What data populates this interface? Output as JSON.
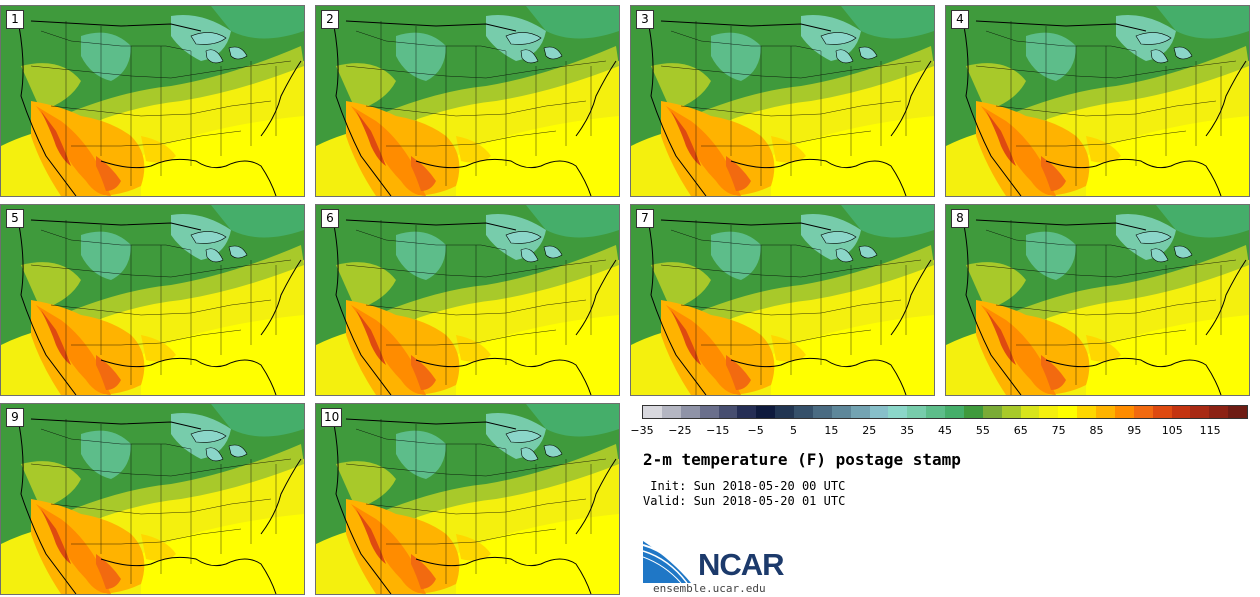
{
  "panels": [
    {
      "label": "1"
    },
    {
      "label": "2"
    },
    {
      "label": "3"
    },
    {
      "label": "4"
    },
    {
      "label": "5"
    },
    {
      "label": "6"
    },
    {
      "label": "7"
    },
    {
      "label": "8"
    },
    {
      "label": "9"
    },
    {
      "label": "10"
    }
  ],
  "colorbar": {
    "colors": [
      "#d8d8de",
      "#b4b6c2",
      "#8f93a7",
      "#6a6f8c",
      "#474e70",
      "#252e55",
      "#0e1a3d",
      "#213552",
      "#35506a",
      "#4a6b82",
      "#5e879a",
      "#73a3b2",
      "#87bfc9",
      "#8bd6c9",
      "#77ccab",
      "#5dbd8a",
      "#45ae6a",
      "#3f9a3c",
      "#7aab36",
      "#a8c92a",
      "#d8e41c",
      "#f4f00e",
      "#ffff00",
      "#ffd700",
      "#ffb300",
      "#ff8c00",
      "#f26a10",
      "#de4a10",
      "#c43410",
      "#a82a14",
      "#8c2214",
      "#6e1c14"
    ],
    "tick_labels": [
      "−35",
      "−25",
      "−15",
      "−5",
      "5",
      "15",
      "25",
      "35",
      "45",
      "55",
      "65",
      "75",
      "85",
      "95",
      "105",
      "115"
    ]
  },
  "title": "2-m temperature (F) postage stamp",
  "init": " Init: Sun 2018-05-20 00 UTC",
  "valid": "Valid: Sun 2018-05-20 01 UTC",
  "logo": {
    "text": "NCAR",
    "website": "ensemble.ucar.edu"
  }
}
